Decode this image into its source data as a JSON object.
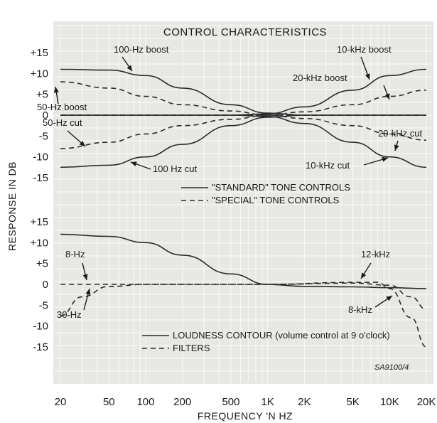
{
  "chart_data": {
    "type": "line",
    "title": "CONTROL CHARACTERISTICS",
    "xlabel": "FREQUENCY 'N HZ",
    "ylabel": "RESPONSE IN DB",
    "x_scale": "log",
    "xlim": [
      20,
      20000
    ],
    "x_ticks": [
      {
        "value": 20,
        "label": "20"
      },
      {
        "value": 50,
        "label": "50"
      },
      {
        "value": 100,
        "label": "100"
      },
      {
        "value": 200,
        "label": "200"
      },
      {
        "value": 500,
        "label": "500"
      },
      {
        "value": 1000,
        "label": "1K"
      },
      {
        "value": 2000,
        "label": "2K"
      },
      {
        "value": 5000,
        "label": "5K"
      },
      {
        "value": 10000,
        "label": "10K"
      },
      {
        "value": 20000,
        "label": "20K"
      }
    ],
    "y_tick_labels": [
      "+15",
      "+10",
      "+5",
      "0",
      "-5",
      "-10",
      "-15"
    ],
    "y_tick_values": [
      15,
      10,
      5,
      0,
      -5,
      -10,
      -15
    ],
    "grid": true,
    "source_code": "SA9100/4",
    "panels": [
      {
        "ylim": [
          -15,
          15
        ],
        "legend": [
          {
            "style": "solid",
            "label": "\"STANDARD\" TONE CONTROLS"
          },
          {
            "style": "dashed",
            "label": "\"SPECIAL\" TONE CONTROLS"
          }
        ],
        "series": [
          {
            "name": "100-Hz boost",
            "style": "solid",
            "points": [
              [
                20,
                11
              ],
              [
                50,
                10.8
              ],
              [
                100,
                9.5
              ],
              [
                200,
                6.5
              ],
              [
                500,
                2.5
              ],
              [
                1000,
                0.5
              ],
              [
                2000,
                0
              ],
              [
                5000,
                0
              ],
              [
                10000,
                0
              ],
              [
                20000,
                0
              ]
            ]
          },
          {
            "name": "10-kHz boost",
            "style": "solid",
            "points": [
              [
                20,
                0
              ],
              [
                200,
                0
              ],
              [
                500,
                0
              ],
              [
                1000,
                0.3
              ],
              [
                2000,
                2
              ],
              [
                5000,
                6
              ],
              [
                10000,
                9.5
              ],
              [
                20000,
                11
              ]
            ]
          },
          {
            "name": "100 Hz cut",
            "style": "solid",
            "points": [
              [
                20,
                -12.5
              ],
              [
                50,
                -12
              ],
              [
                100,
                -10
              ],
              [
                200,
                -7
              ],
              [
                500,
                -2.5
              ],
              [
                1000,
                -0.5
              ],
              [
                2000,
                0
              ],
              [
                20000,
                0
              ]
            ]
          },
          {
            "name": "10-kHz cut",
            "style": "solid",
            "points": [
              [
                20,
                0
              ],
              [
                500,
                0
              ],
              [
                1000,
                -0.3
              ],
              [
                2000,
                -2
              ],
              [
                5000,
                -6.5
              ],
              [
                10000,
                -10
              ],
              [
                20000,
                -12.5
              ]
            ]
          },
          {
            "name": "50-Hz boost",
            "style": "dashed",
            "points": [
              [
                20,
                8
              ],
              [
                50,
                6.5
              ],
              [
                100,
                4.5
              ],
              [
                200,
                2.5
              ],
              [
                500,
                1
              ],
              [
                1000,
                0
              ],
              [
                20000,
                0
              ]
            ]
          },
          {
            "name": "50-Hz cut",
            "style": "dashed",
            "points": [
              [
                20,
                -8
              ],
              [
                50,
                -6.5
              ],
              [
                100,
                -4.5
              ],
              [
                200,
                -2.5
              ],
              [
                500,
                -1
              ],
              [
                1000,
                0
              ],
              [
                20000,
                0
              ]
            ]
          },
          {
            "name": "20-kHz boost",
            "style": "dashed",
            "points": [
              [
                20,
                0
              ],
              [
                1000,
                0
              ],
              [
                2000,
                0.8
              ],
              [
                5000,
                2.5
              ],
              [
                10000,
                4.5
              ],
              [
                20000,
                6
              ]
            ]
          },
          {
            "name": "20-kHz cut",
            "style": "dashed",
            "points": [
              [
                20,
                0
              ],
              [
                1000,
                0
              ],
              [
                2000,
                -0.8
              ],
              [
                5000,
                -2.5
              ],
              [
                10000,
                -4.5
              ],
              [
                20000,
                -6
              ]
            ]
          }
        ],
        "annotations": [
          "100-Hz boost",
          "10-kHz boost",
          "20-kHz boost",
          "50-Hz boost",
          "50-Hz cut",
          "20-kHz cut",
          "100 Hz cut",
          "10-kHz cut"
        ]
      },
      {
        "ylim": [
          -15,
          15
        ],
        "legend": [
          {
            "style": "solid",
            "label": "LOUDNESS CONTOUR (volume control at 9 o'clock)"
          },
          {
            "style": "dashed",
            "label": "FILTERS"
          }
        ],
        "series": [
          {
            "name": "LOUDNESS CONTOUR",
            "style": "solid",
            "points": [
              [
                20,
                12
              ],
              [
                50,
                11.5
              ],
              [
                100,
                10
              ],
              [
                200,
                7
              ],
              [
                500,
                2.5
              ],
              [
                1000,
                0
              ],
              [
                2000,
                -0.5
              ],
              [
                5000,
                -0.6
              ],
              [
                10000,
                -0.8
              ],
              [
                20000,
                -1
              ]
            ]
          },
          {
            "name": "8-Hz",
            "style": "dashed",
            "points": [
              [
                20,
                0
              ],
              [
                50,
                0
              ],
              [
                200,
                0
              ],
              [
                1000,
                0
              ],
              [
                5000,
                0.3
              ],
              [
                10000,
                -0.2
              ],
              [
                15000,
                -3
              ],
              [
                20000,
                -6
              ]
            ]
          },
          {
            "name": "12-kHz",
            "style": "dashed",
            "points": [
              [
                20,
                -7.5
              ],
              [
                30,
                -3
              ],
              [
                50,
                -0.5
              ],
              [
                100,
                0
              ],
              [
                1000,
                0
              ],
              [
                5000,
                0.5
              ],
              [
                8000,
                0.5
              ],
              [
                10000,
                -1
              ],
              [
                15000,
                -8
              ],
              [
                20000,
                -15
              ]
            ]
          }
        ],
        "annotations": [
          "8-Hz",
          "30-Hz",
          "12-kHz",
          "8-kHz"
        ]
      }
    ]
  }
}
